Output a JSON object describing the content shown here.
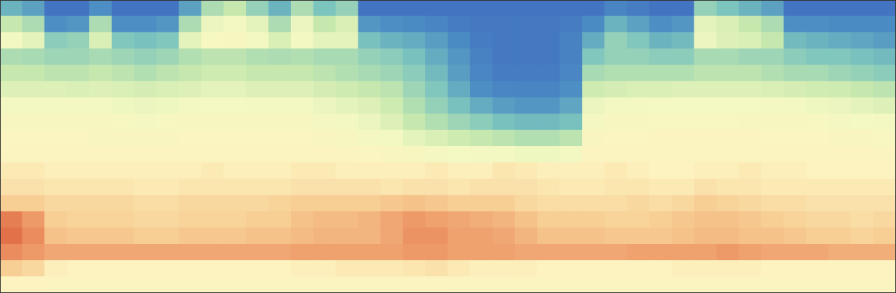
{
  "chart_data": {
    "type": "heatmap",
    "tick_labels": false,
    "xlim": [
      0,
      40
    ],
    "ylim": [
      0,
      18
    ],
    "zlim": [
      0,
      100
    ],
    "cells": [
      [
        30,
        25,
        8,
        8,
        20,
        8,
        8,
        8,
        25,
        45,
        50,
        40,
        30,
        45,
        35,
        40,
        8,
        8,
        8,
        8,
        8,
        8,
        8,
        8,
        8,
        8,
        8,
        15,
        12,
        8,
        8,
        40,
        35,
        30,
        25,
        8,
        8,
        8,
        8,
        8
      ],
      [
        50,
        45,
        20,
        22,
        45,
        20,
        20,
        22,
        45,
        60,
        62,
        58,
        45,
        60,
        50,
        55,
        22,
        20,
        18,
        15,
        12,
        10,
        10,
        10,
        10,
        12,
        18,
        30,
        25,
        20,
        22,
        58,
        55,
        50,
        45,
        20,
        20,
        18,
        18,
        18
      ],
      [
        62,
        58,
        38,
        40,
        55,
        36,
        34,
        36,
        58,
        65,
        66,
        62,
        55,
        62,
        58,
        58,
        34,
        30,
        28,
        24,
        18,
        12,
        10,
        10,
        10,
        14,
        28,
        40,
        36,
        30,
        32,
        60,
        56,
        55,
        50,
        32,
        30,
        28,
        26,
        24
      ],
      [
        45,
        44,
        42,
        42,
        44,
        42,
        40,
        42,
        46,
        48,
        48,
        46,
        45,
        46,
        44,
        44,
        40,
        38,
        34,
        28,
        22,
        14,
        10,
        10,
        10,
        14,
        36,
        40,
        40,
        38,
        38,
        44,
        44,
        42,
        42,
        38,
        36,
        36,
        34,
        32
      ],
      [
        50,
        50,
        48,
        48,
        50,
        48,
        46,
        48,
        50,
        52,
        52,
        50,
        50,
        50,
        48,
        46,
        44,
        42,
        38,
        32,
        24,
        16,
        12,
        12,
        12,
        16,
        44,
        46,
        46,
        46,
        46,
        48,
        48,
        48,
        46,
        44,
        44,
        42,
        40,
        38
      ],
      [
        56,
        56,
        56,
        55,
        56,
        55,
        54,
        55,
        56,
        58,
        58,
        56,
        56,
        56,
        54,
        52,
        50,
        48,
        42,
        36,
        28,
        20,
        16,
        15,
        15,
        20,
        52,
        54,
        55,
        55,
        56,
        56,
        56,
        56,
        55,
        54,
        53,
        52,
        50,
        48
      ],
      [
        62,
        62,
        62,
        62,
        62,
        61,
        60,
        61,
        62,
        63,
        63,
        62,
        62,
        62,
        60,
        58,
        56,
        52,
        46,
        40,
        34,
        28,
        24,
        22,
        22,
        26,
        60,
        62,
        62,
        63,
        63,
        63,
        63,
        63,
        62,
        62,
        61,
        60,
        58,
        56
      ],
      [
        66,
        66,
        66,
        66,
        66,
        65,
        64,
        65,
        66,
        66,
        66,
        66,
        66,
        66,
        64,
        62,
        60,
        56,
        50,
        46,
        42,
        38,
        34,
        32,
        32,
        34,
        64,
        66,
        66,
        67,
        67,
        67,
        67,
        66,
        66,
        66,
        65,
        64,
        63,
        62
      ],
      [
        69,
        69,
        69,
        69,
        68,
        68,
        68,
        68,
        69,
        69,
        69,
        69,
        69,
        69,
        68,
        66,
        64,
        62,
        58,
        55,
        52,
        50,
        48,
        46,
        46,
        48,
        68,
        69,
        69,
        70,
        70,
        70,
        70,
        70,
        69,
        69,
        69,
        68,
        68,
        67
      ],
      [
        71,
        71,
        70,
        70,
        70,
        70,
        70,
        70,
        71,
        71,
        71,
        71,
        71,
        71,
        70,
        70,
        69,
        68,
        66,
        64,
        63,
        62,
        62,
        61,
        61,
        62,
        70,
        71,
        71,
        71,
        71,
        71,
        71,
        71,
        71,
        71,
        70,
        70,
        70,
        70
      ],
      [
        74,
        74,
        73,
        73,
        73,
        73,
        73,
        73,
        73,
        74,
        73,
        73,
        73,
        74,
        74,
        73,
        73,
        73,
        73,
        74,
        73,
        73,
        75,
        74,
        73,
        73,
        73,
        74,
        73,
        72,
        72,
        73,
        73,
        74,
        73,
        73,
        72,
        72,
        72,
        72
      ],
      [
        76,
        76,
        75,
        75,
        75,
        75,
        74,
        74,
        75,
        75,
        75,
        75,
        75,
        76,
        76,
        76,
        76,
        75,
        76,
        76,
        75,
        76,
        76,
        76,
        75,
        74,
        74,
        75,
        75,
        74,
        74,
        76,
        75,
        75,
        74,
        74,
        74,
        74,
        74,
        74
      ],
      [
        80,
        80,
        78,
        78,
        78,
        78,
        77,
        77,
        78,
        78,
        78,
        78,
        79,
        80,
        80,
        80,
        80,
        81,
        82,
        81,
        80,
        80,
        80,
        78,
        77,
        77,
        77,
        77,
        78,
        77,
        78,
        80,
        79,
        78,
        77,
        77,
        76,
        76,
        76,
        76
      ],
      [
        92,
        88,
        80,
        79,
        79,
        79,
        78,
        78,
        79,
        79,
        79,
        80,
        80,
        82,
        83,
        83,
        84,
        86,
        88,
        87,
        86,
        85,
        84,
        82,
        80,
        80,
        80,
        79,
        79,
        80,
        81,
        82,
        82,
        81,
        80,
        79,
        78,
        78,
        77,
        78
      ],
      [
        94,
        90,
        82,
        81,
        81,
        81,
        80,
        80,
        81,
        81,
        81,
        82,
        82,
        83,
        84,
        84,
        84,
        86,
        89,
        89,
        87,
        87,
        86,
        84,
        82,
        82,
        82,
        81,
        81,
        81,
        82,
        83,
        83,
        82,
        82,
        81,
        80,
        80,
        79,
        80
      ],
      [
        90,
        88,
        86,
        86,
        86,
        86,
        86,
        86,
        86,
        86,
        86,
        86,
        86,
        87,
        87,
        87,
        87,
        87,
        88,
        88,
        87,
        87,
        87,
        86,
        86,
        86,
        86,
        86,
        87,
        87,
        87,
        87,
        88,
        87,
        86,
        86,
        86,
        85,
        85,
        85
      ],
      [
        80,
        78,
        73,
        72,
        72,
        72,
        72,
        72,
        72,
        72,
        72,
        72,
        72,
        73,
        73,
        74,
        74,
        74,
        75,
        76,
        74,
        73,
        73,
        73,
        72,
        72,
        72,
        72,
        72,
        72,
        73,
        73,
        73,
        73,
        72,
        72,
        72,
        72,
        72,
        72
      ],
      [
        72,
        72,
        70,
        70,
        70,
        70,
        70,
        70,
        70,
        70,
        70,
        70,
        70,
        70,
        70,
        70,
        70,
        70,
        71,
        71,
        70,
        70,
        70,
        70,
        70,
        70,
        70,
        70,
        70,
        70,
        70,
        70,
        70,
        70,
        70,
        70,
        70,
        70,
        70,
        70
      ]
    ]
  }
}
